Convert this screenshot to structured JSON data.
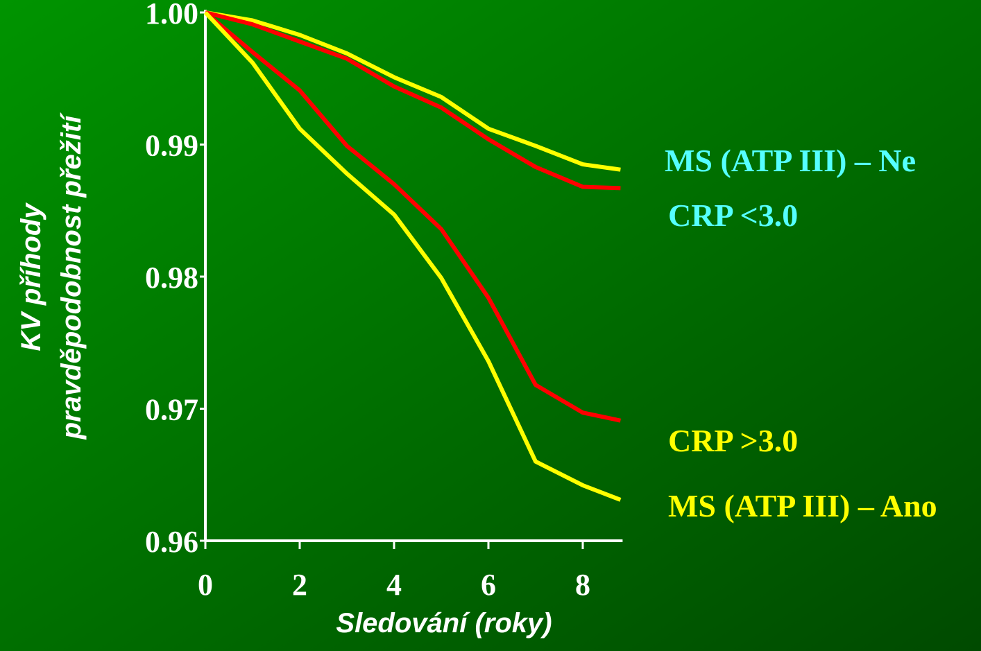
{
  "chart_data": {
    "type": "line",
    "x_label": "Sledování (roky)",
    "y_label": [
      "KV příhody",
      "pravděpodobnost přežití"
    ],
    "x": [
      0,
      1,
      2,
      3,
      4,
      5,
      6,
      7,
      8,
      8.8
    ],
    "series": [
      {
        "color": "#ffff00",
        "values": [
          1.0,
          0.9994,
          0.9983,
          0.9969,
          0.9951,
          0.9936,
          0.9912,
          0.9899,
          0.9885,
          0.9881
        ]
      },
      {
        "color": "#ff0000",
        "values": [
          1.0,
          0.9991,
          0.9978,
          0.9965,
          0.9944,
          0.9928,
          0.9904,
          0.9883,
          0.9868,
          0.9867
        ]
      },
      {
        "color": "#ff0000",
        "values": [
          1.0,
          0.997,
          0.9941,
          0.9899,
          0.987,
          0.9836,
          0.9784,
          0.9718,
          0.9697,
          0.9691
        ]
      },
      {
        "color": "#ffff00",
        "values": [
          1.0,
          0.9962,
          0.9912,
          0.9878,
          0.9847,
          0.9799,
          0.9736,
          0.966,
          0.9642,
          0.9631
        ]
      }
    ],
    "annotations": [
      {
        "text": "MS (ATP III) – Ne",
        "color": "#55ffff"
      },
      {
        "text": "CRP <3.0",
        "color": "#55ffff"
      },
      {
        "text": "CRP >3.0",
        "color": "#ffff00"
      },
      {
        "text": "MS (ATP III) – Ano",
        "color": "#ffff00"
      }
    ],
    "xlim": [
      0,
      8.8
    ],
    "ylim": [
      0.96,
      1.0
    ],
    "xticks": [
      0,
      2,
      4,
      6,
      8
    ],
    "yticks": [
      {
        "value": 1,
        "label": "1.00"
      },
      0.99,
      0.98,
      0.97,
      0.96
    ]
  }
}
